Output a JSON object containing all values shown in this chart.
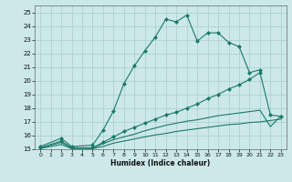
{
  "title": "",
  "xlabel": "Humidex (Indice chaleur)",
  "background_color": "#cce8e8",
  "grid_color": "#aacccc",
  "line_color": "#1a7a6a",
  "xlim": [
    -0.5,
    23.5
  ],
  "ylim": [
    15,
    25.5
  ],
  "xticks": [
    0,
    1,
    2,
    3,
    4,
    5,
    6,
    7,
    8,
    9,
    10,
    11,
    12,
    13,
    14,
    15,
    16,
    17,
    18,
    19,
    20,
    21,
    22,
    23
  ],
  "yticks": [
    15,
    16,
    17,
    18,
    19,
    20,
    21,
    22,
    23,
    24,
    25
  ],
  "series": [
    {
      "x": [
        0,
        2,
        3,
        5,
        6,
        7,
        8,
        9,
        10,
        11,
        12,
        13,
        14,
        15,
        16,
        17,
        18,
        19,
        20,
        21
      ],
      "y": [
        15.2,
        15.8,
        15.2,
        15.3,
        16.4,
        17.8,
        19.8,
        21.1,
        22.2,
        23.2,
        24.5,
        24.3,
        24.8,
        22.9,
        23.5,
        23.5,
        22.8,
        22.5,
        20.6,
        20.8
      ],
      "marker": "D",
      "ms": 2.0,
      "lw": 0.8
    },
    {
      "x": [
        0,
        2,
        3,
        5,
        6,
        7,
        8,
        9,
        10,
        11,
        12,
        13,
        14,
        15,
        16,
        17,
        18,
        19,
        20,
        21,
        22,
        23
      ],
      "y": [
        15.1,
        15.6,
        15.1,
        15.1,
        15.5,
        15.9,
        16.3,
        16.6,
        16.9,
        17.2,
        17.5,
        17.7,
        18.0,
        18.3,
        18.7,
        19.0,
        19.4,
        19.7,
        20.1,
        20.6,
        17.5,
        17.4
      ],
      "marker": "D",
      "ms": 2.0,
      "lw": 0.8
    },
    {
      "x": [
        0,
        2,
        3,
        5,
        6,
        7,
        8,
        9,
        10,
        11,
        12,
        13,
        14,
        15,
        16,
        17,
        18,
        19,
        20,
        21,
        22,
        23
      ],
      "y": [
        15.1,
        15.5,
        15.1,
        15.1,
        15.4,
        15.7,
        15.9,
        16.1,
        16.35,
        16.55,
        16.75,
        16.9,
        17.05,
        17.15,
        17.3,
        17.45,
        17.55,
        17.65,
        17.75,
        17.85,
        16.65,
        17.45
      ],
      "marker": null,
      "ms": 0,
      "lw": 0.8
    },
    {
      "x": [
        0,
        2,
        3,
        5,
        6,
        7,
        8,
        9,
        10,
        11,
        12,
        13,
        14,
        15,
        16,
        17,
        18,
        19,
        20,
        21,
        22,
        23
      ],
      "y": [
        15.05,
        15.35,
        15.05,
        15.05,
        15.2,
        15.45,
        15.6,
        15.75,
        15.9,
        16.05,
        16.15,
        16.3,
        16.4,
        16.5,
        16.6,
        16.7,
        16.8,
        16.85,
        16.95,
        17.0,
        17.1,
        17.2
      ],
      "marker": null,
      "ms": 0,
      "lw": 0.8
    }
  ]
}
